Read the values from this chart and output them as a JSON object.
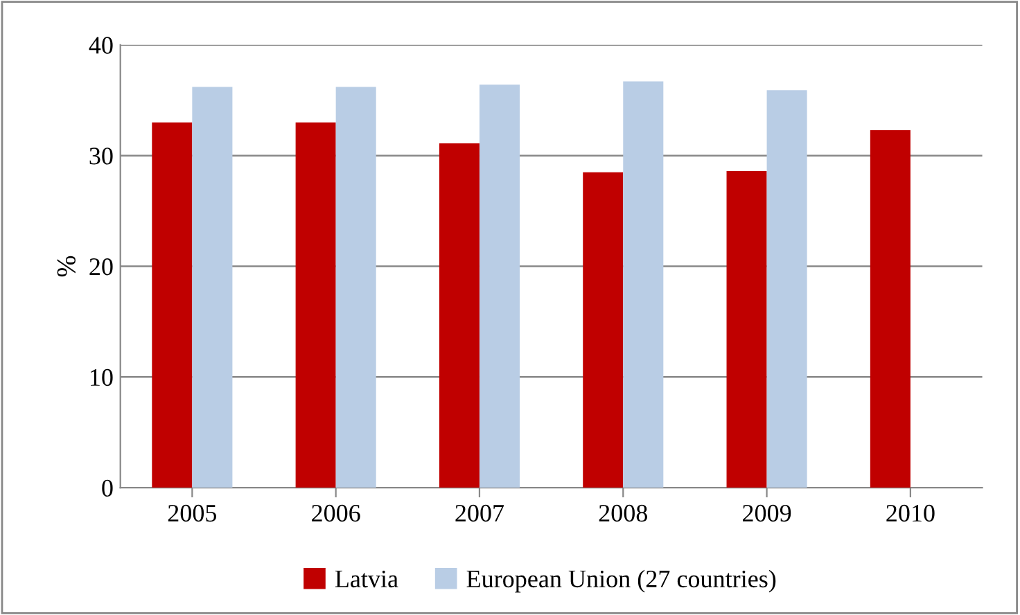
{
  "chart_data": {
    "type": "bar",
    "ylabel": "%",
    "categories": [
      "2005",
      "2006",
      "2007",
      "2008",
      "2009",
      "2010"
    ],
    "series": [
      {
        "name": "Latvia",
        "color": "#c00000",
        "values": [
          33.0,
          33.0,
          31.1,
          28.5,
          28.6,
          32.3
        ]
      },
      {
        "name": "European Union (27 countries)",
        "color": "#b9cde5",
        "values": [
          36.2,
          36.2,
          36.4,
          36.7,
          35.9,
          null
        ]
      }
    ],
    "ylim": [
      0,
      40
    ],
    "yticks": [
      0,
      10,
      20,
      30,
      40
    ],
    "grid": "y",
    "legend": "bottom"
  }
}
